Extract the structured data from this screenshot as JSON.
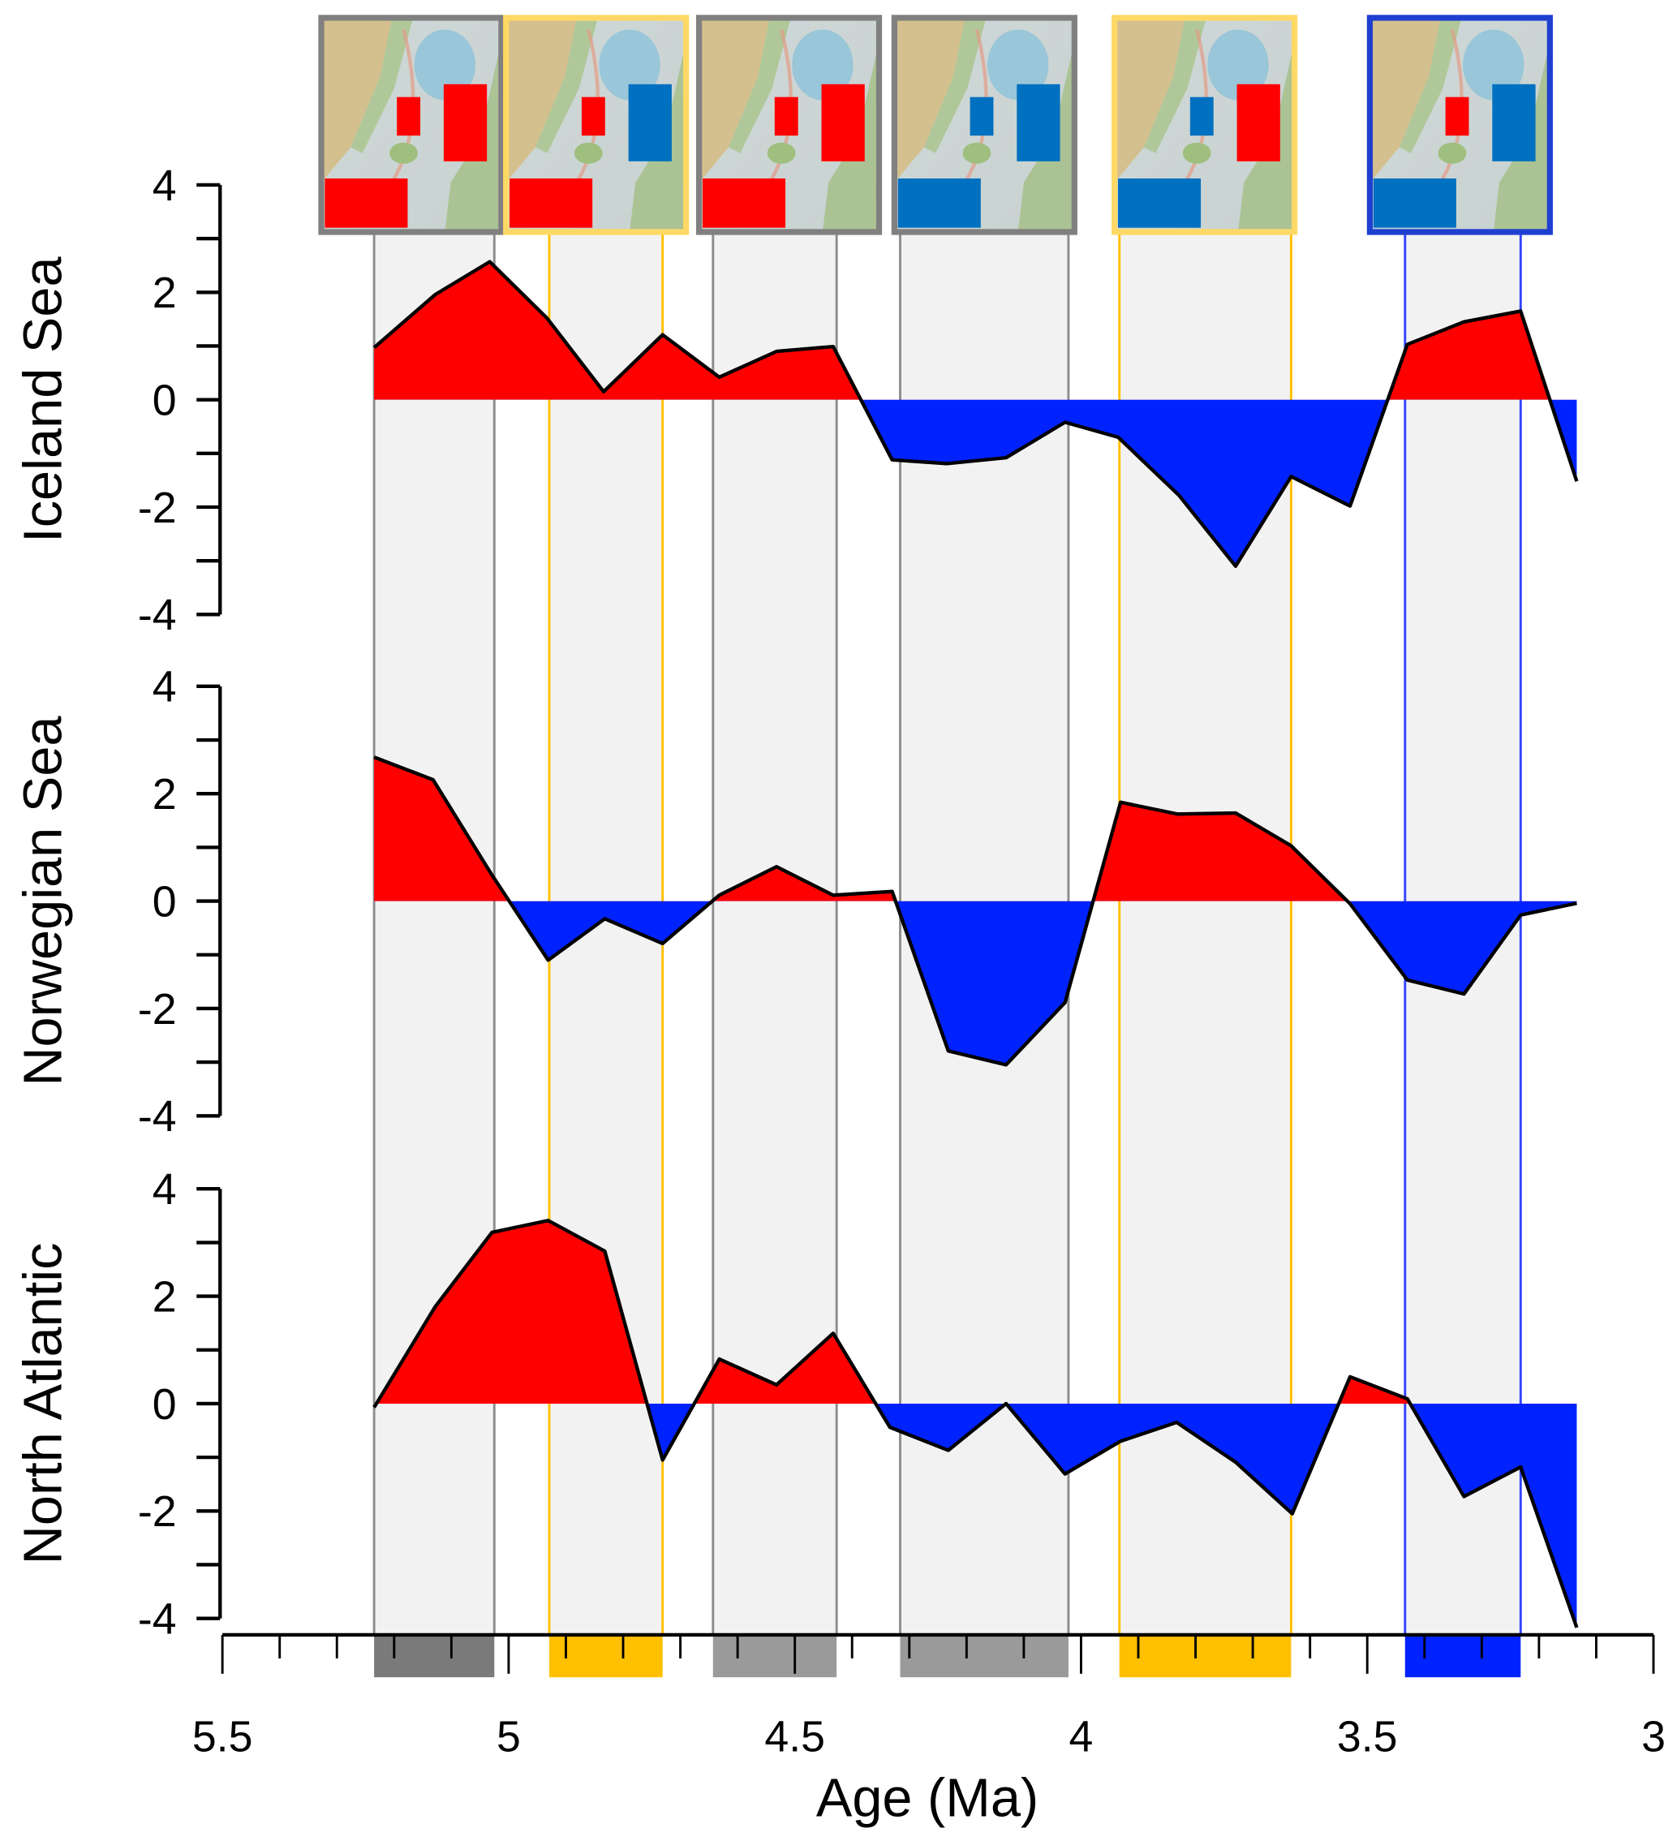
{
  "chart_data": {
    "type": "area",
    "xlabel": "Age (Ma)",
    "xlim": [
      5.5,
      3.0
    ],
    "x_ticks": [
      "5.5",
      "5",
      "4.5",
      "4",
      "3.5",
      "3"
    ],
    "x_tick_values": [
      5.5,
      5.0,
      4.5,
      4.0,
      3.5,
      3.0
    ],
    "x_minor_step": 0.1,
    "positive_color": "#ff0000",
    "negative_color": "#0022ff",
    "panels": [
      {
        "name": "Iceland Sea",
        "ylabel": "Iceland Sea",
        "ylim": [
          -4,
          4
        ],
        "y_ticks": [
          "4",
          "2",
          "0",
          "-2",
          "-4"
        ],
        "y_tick_values": [
          4,
          2,
          0,
          -2,
          -4
        ],
        "x": [
          5.235,
          5.128,
          5.033,
          4.933,
          4.834,
          4.731,
          4.632,
          4.532,
          4.433,
          4.33,
          4.234,
          4.131,
          4.028,
          3.935,
          3.829,
          3.73,
          3.633,
          3.53,
          3.43,
          3.331,
          3.232,
          3.134
        ],
        "y": [
          0.97,
          1.96,
          2.57,
          1.52,
          0.15,
          1.21,
          0.42,
          0.9,
          0.99,
          -1.12,
          -1.19,
          -1.08,
          -0.42,
          -0.7,
          -1.78,
          -3.1,
          -1.43,
          -1.98,
          1.03,
          1.45,
          1.65,
          -1.52
        ]
      },
      {
        "name": "Norwegian Sea",
        "ylabel": "Norwegian Sea",
        "ylim": [
          -4,
          4
        ],
        "y_ticks": [
          "4",
          "2",
          "0",
          "-2",
          "-4"
        ],
        "y_tick_values": [
          4,
          2,
          0,
          -2,
          -4
        ],
        "x": [
          5.235,
          5.132,
          5.03,
          4.931,
          4.832,
          4.731,
          4.632,
          4.532,
          4.433,
          4.33,
          4.232,
          4.131,
          4.028,
          3.931,
          3.831,
          3.73,
          3.633,
          3.53,
          3.43,
          3.331,
          3.232,
          3.134
        ],
        "y": [
          2.68,
          2.26,
          0.5,
          -1.1,
          -0.33,
          -0.79,
          0.11,
          0.64,
          0.11,
          0.18,
          -2.79,
          -3.05,
          -1.89,
          1.84,
          1.62,
          1.64,
          1.03,
          -0.05,
          -1.47,
          -1.73,
          -0.26,
          -0.04
        ]
      },
      {
        "name": "North Atlantic",
        "ylabel": "North Atlantic",
        "ylim": [
          -4,
          4
        ],
        "y_ticks": [
          "4",
          "2",
          "0",
          "-2",
          "-4"
        ],
        "y_tick_values": [
          4,
          2,
          0,
          -2,
          -4
        ],
        "x": [
          5.235,
          5.128,
          5.029,
          4.931,
          4.832,
          4.731,
          4.632,
          4.532,
          4.433,
          4.334,
          4.232,
          4.131,
          4.028,
          3.931,
          3.833,
          3.73,
          3.631,
          3.53,
          3.43,
          3.331,
          3.232,
          3.134
        ],
        "y": [
          -0.07,
          1.81,
          3.19,
          3.41,
          2.84,
          -1.05,
          0.83,
          0.35,
          1.31,
          -0.44,
          -0.87,
          0.0,
          -1.31,
          -0.7,
          -0.35,
          -1.09,
          -2.05,
          0.5,
          0.09,
          -1.73,
          -1.18,
          -4.17
        ]
      }
    ],
    "bands": [
      {
        "start": 5.235,
        "end": 5.025,
        "line_color": "#8c8c8c",
        "frame_color": "#808080",
        "bar_color": "#7a7a7a",
        "boxes": [
          "red",
          "red",
          "red"
        ]
      },
      {
        "start": 4.929,
        "end": 4.731,
        "line_color": "#ffc000",
        "frame_color": "#ffd966",
        "bar_color": "#ffc000",
        "boxes": [
          "red",
          "blue",
          "red"
        ]
      },
      {
        "start": 4.643,
        "end": 4.427,
        "line_color": "#8c8c8c",
        "frame_color": "#808080",
        "bar_color": "#9a9a9a",
        "boxes": [
          "red",
          "red",
          "red"
        ]
      },
      {
        "start": 4.316,
        "end": 4.022,
        "line_color": "#8c8c8c",
        "frame_color": "#808080",
        "bar_color": "#9a9a9a",
        "boxes": [
          "blue",
          "blue",
          "blue"
        ]
      },
      {
        "start": 3.933,
        "end": 3.633,
        "line_color": "#ffc000",
        "frame_color": "#ffd966",
        "bar_color": "#ffc000",
        "boxes": [
          "blue",
          "red",
          "blue"
        ]
      },
      {
        "start": 3.434,
        "end": 3.232,
        "line_color": "#3344ff",
        "frame_color": "#1f3fd0",
        "bar_color": "#0022ff",
        "boxes": [
          "red",
          "blue",
          "blue"
        ]
      }
    ],
    "map_box_colors": {
      "red": "#ff0000",
      "blue": "#0070c0"
    },
    "band_fill": "#f2f2f2"
  }
}
